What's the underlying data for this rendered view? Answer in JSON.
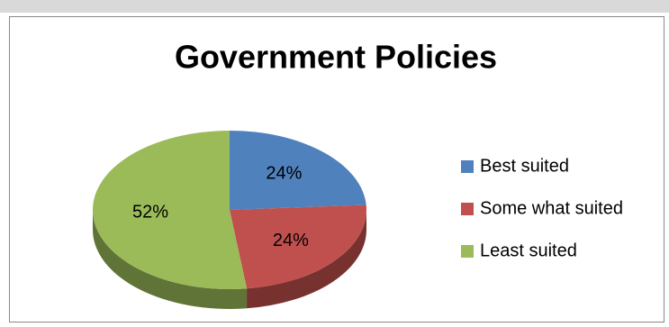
{
  "chart_data": {
    "type": "pie",
    "title": "Government Policies",
    "categories": [
      "Best suited",
      "Some what suited",
      "Least suited"
    ],
    "values": [
      24,
      24,
      52
    ],
    "value_labels": [
      "24%",
      "24%",
      "52%"
    ],
    "colors": [
      "#4f81bd",
      "#c0504d",
      "#9bbb59"
    ],
    "legend": "right"
  }
}
